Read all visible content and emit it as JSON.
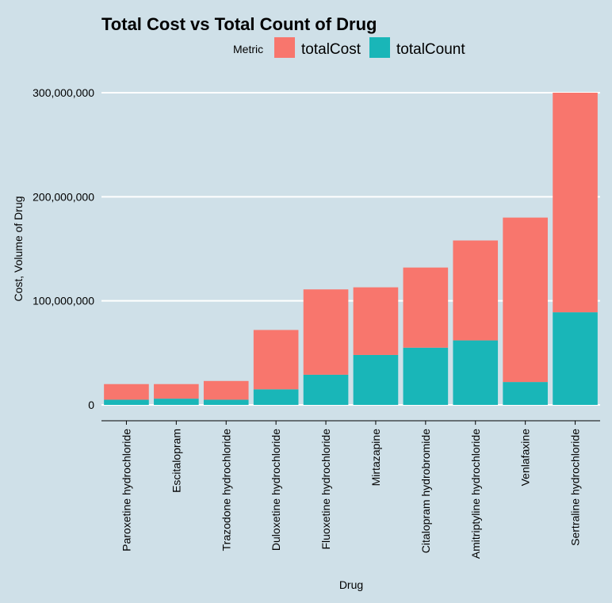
{
  "chart_data": {
    "type": "bar",
    "stacked": true,
    "title": "Total Cost vs Total Count of Drug",
    "xlabel": "Drug",
    "ylabel": "Cost, Volume of Drug",
    "ylim": [
      0,
      300000000
    ],
    "yticks": [
      0,
      100000000,
      200000000,
      300000000
    ],
    "ytick_labels": [
      "0",
      "100,000,000",
      "200,000,000",
      "300,000,000"
    ],
    "grid": true,
    "legend": {
      "title": "Metric",
      "position": "top"
    },
    "categories": [
      "Paroxetine hydrochloride",
      "Escitalopram",
      "Trazodone hydrochloride",
      "Duloxetine hydrochloride",
      "Fluoxetine hydrochloride",
      "Mirtazapine",
      "Citalopram hydrobromide",
      "Amitriptyline hydrochloride",
      "Venlafaxine",
      "Sertraline hydrochloride"
    ],
    "series": [
      {
        "name": "totalCost",
        "color": "#f8766d",
        "values": [
          15000000,
          14000000,
          18000000,
          57000000,
          82000000,
          65000000,
          77000000,
          96000000,
          158000000,
          211000000
        ]
      },
      {
        "name": "totalCount",
        "color": "#19b6b8",
        "values": [
          5000000,
          6000000,
          5000000,
          15000000,
          29000000,
          48000000,
          55000000,
          62000000,
          22000000,
          89000000
        ]
      }
    ]
  }
}
